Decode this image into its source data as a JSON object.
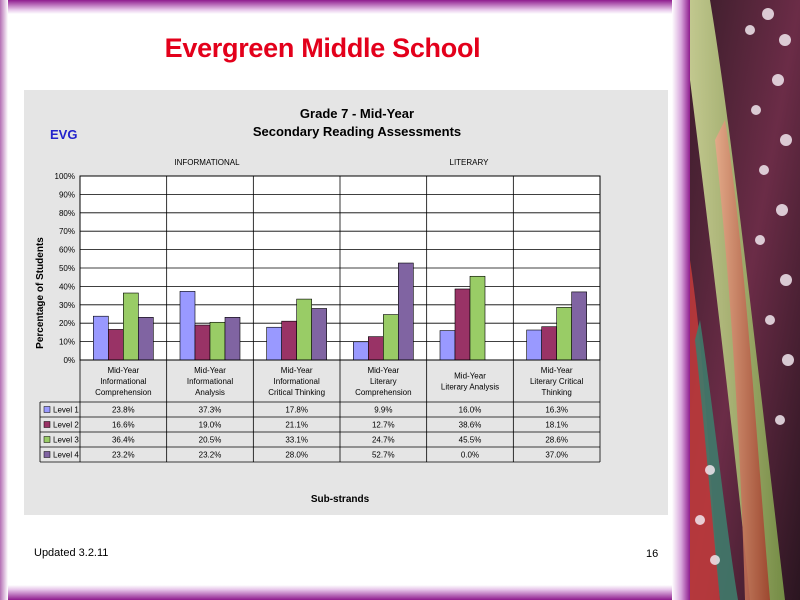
{
  "slide": {
    "title": "Evergreen Middle School",
    "updated": "Updated  3.2.11",
    "page_number": "16"
  },
  "theme": {
    "title_color": "#e3001b",
    "frame_color": "#8e1c8e"
  },
  "chart_data": {
    "type": "bar",
    "title": "Grade 7 - Mid-Year",
    "subtitle": "Secondary Reading Assessments",
    "school_code": "EVG",
    "group_labels": [
      "INFORMATIONAL",
      "LITERARY"
    ],
    "xlabel": "Sub-strands",
    "ylabel": "Percentage of Students",
    "ylim": [
      0,
      100
    ],
    "yticks": [
      "0%",
      "10%",
      "20%",
      "30%",
      "40%",
      "50%",
      "60%",
      "70%",
      "80%",
      "90%",
      "100%"
    ],
    "grid": true,
    "categories": [
      [
        "Mid-Year",
        "Informational",
        "Comprehension"
      ],
      [
        "Mid-Year",
        "Informational",
        "Analysis"
      ],
      [
        "Mid-Year",
        "Informational",
        "Critical Thinking"
      ],
      [
        "Mid-Year",
        "Literary",
        "Comprehension"
      ],
      [
        "Mid-Year",
        "Literary Analysis"
      ],
      [
        "Mid-Year",
        "Literary Critical",
        "Thinking"
      ]
    ],
    "series": [
      {
        "name": "Level 1",
        "color": "#9999ff",
        "values": [
          23.8,
          37.3,
          17.8,
          9.9,
          16.0,
          16.3
        ],
        "labels": [
          "23.8%",
          "37.3%",
          "17.8%",
          "9.9%",
          "16.0%",
          "16.3%"
        ]
      },
      {
        "name": "Level 2",
        "color": "#993366",
        "values": [
          16.6,
          19.0,
          21.1,
          12.7,
          38.6,
          18.1
        ],
        "labels": [
          "16.6%",
          "19.0%",
          "21.1%",
          "12.7%",
          "38.6%",
          "18.1%"
        ]
      },
      {
        "name": "Level 3",
        "color": "#99cc66",
        "values": [
          36.4,
          20.5,
          33.1,
          24.7,
          45.5,
          28.6
        ],
        "labels": [
          "36.4%",
          "20.5%",
          "33.1%",
          "24.7%",
          "45.5%",
          "28.6%"
        ]
      },
      {
        "name": "Level 4",
        "color": "#8064a2",
        "values": [
          23.2,
          23.2,
          28.0,
          52.7,
          0.0,
          37.0
        ],
        "labels": [
          "23.2%",
          "23.2%",
          "28.0%",
          "52.7%",
          "0.0%",
          "37.0%"
        ]
      }
    ]
  }
}
